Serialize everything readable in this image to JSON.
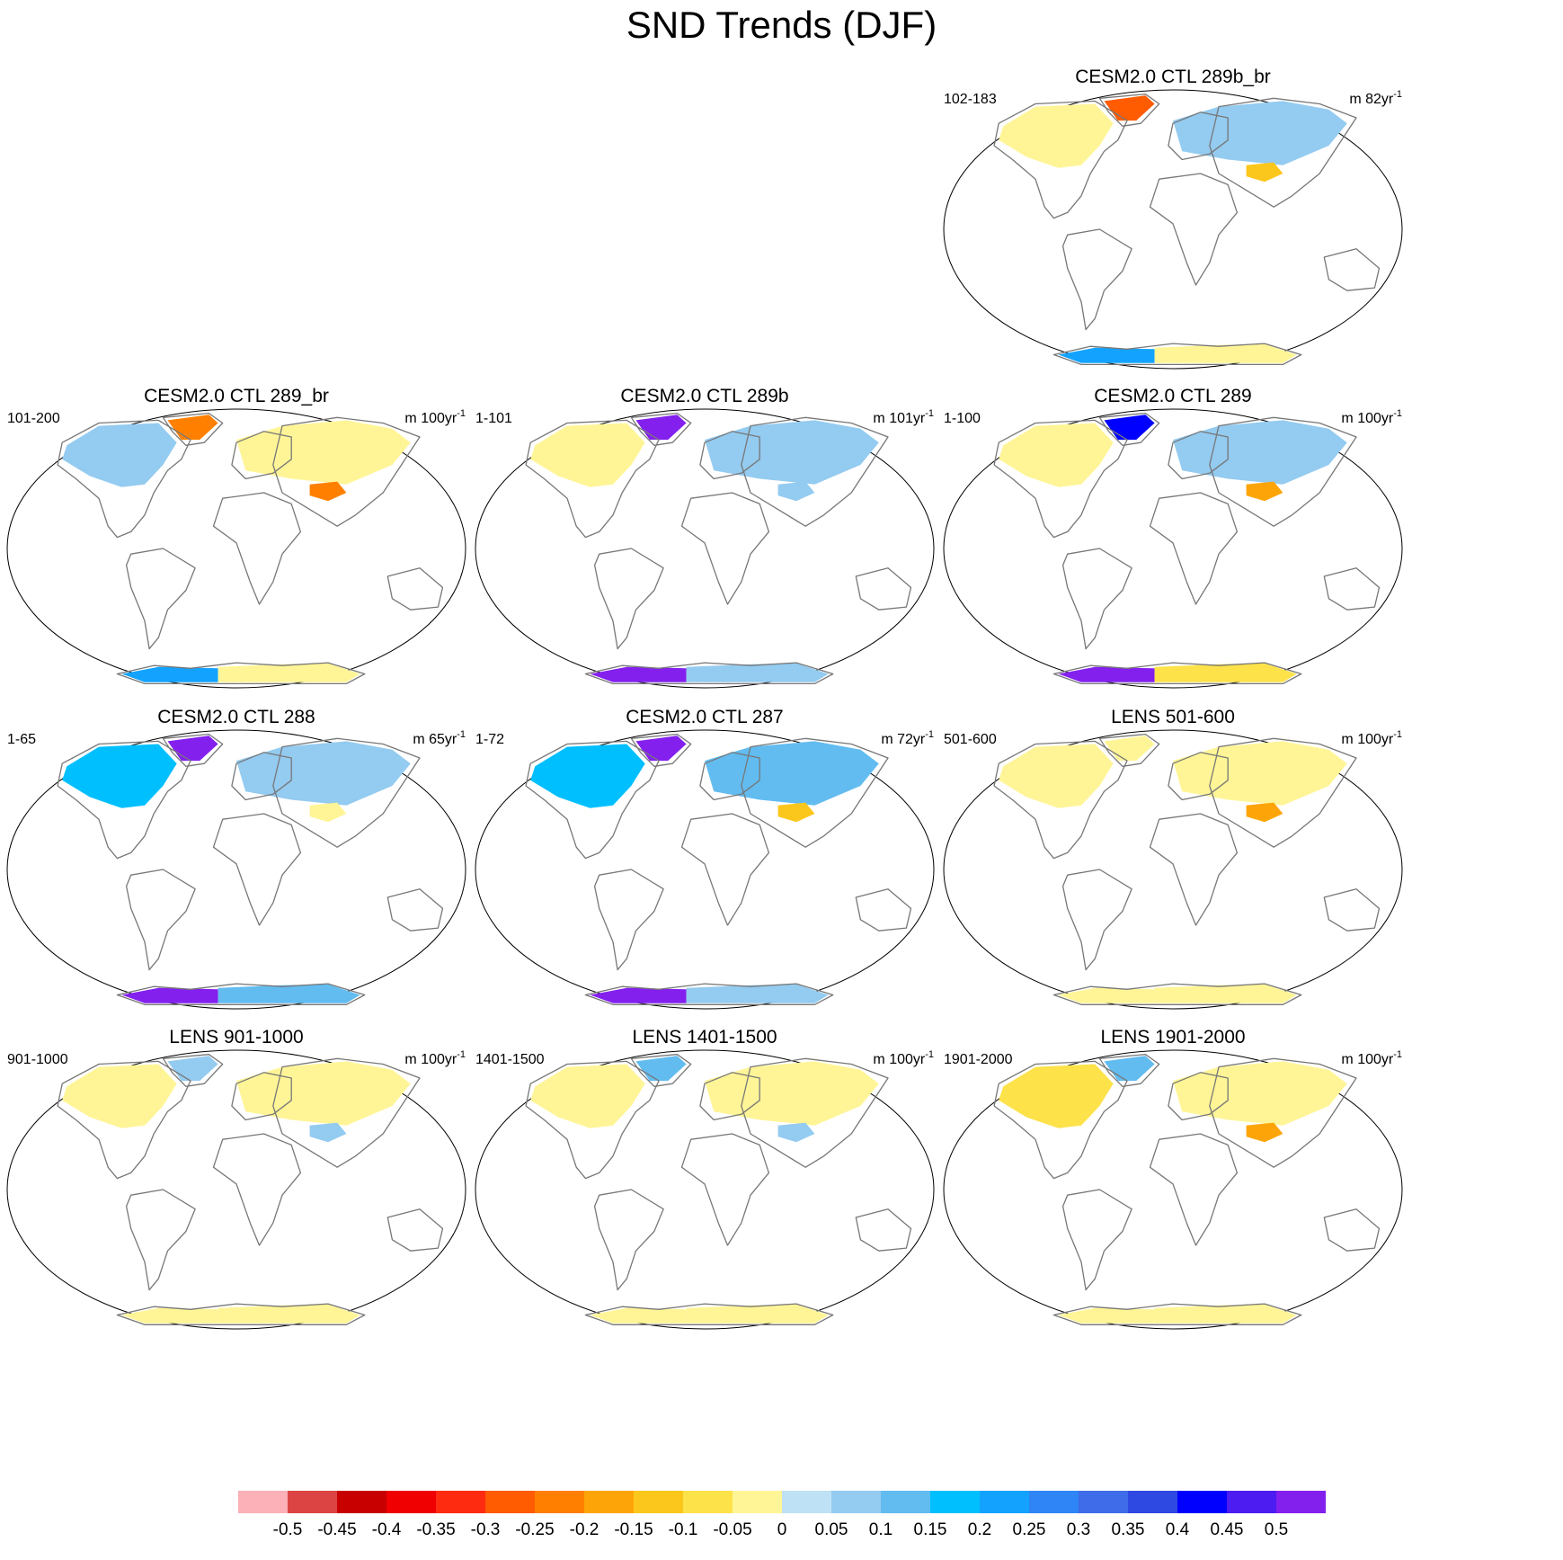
{
  "page_title": "SND Trends (DJF)",
  "colors": {
    "ocean": "#ffffff",
    "land_nodata": "#ffffff",
    "coast": "#777777",
    "frame": "#000000"
  },
  "chart_data": {
    "type": "heatmap",
    "projection": "Winkel Tripel (global map panels)",
    "title": "SND Trends (DJF)",
    "colorbar": {
      "colors": [
        "#fbb1b7",
        "#dc4444",
        "#c80000",
        "#f00000",
        "#ff2b10",
        "#ff5b00",
        "#ff8000",
        "#fda508",
        "#fcc71c",
        "#fde24a",
        "#fff597",
        "#bfe1f5",
        "#94cbf0",
        "#62bcf0",
        "#00bfff",
        "#13a3ff",
        "#2f85f6",
        "#3f6ce8",
        "#2e48e2",
        "#0000ff",
        "#4c1cf1",
        "#8420ee"
      ],
      "tick_labels": [
        "-0.5",
        "-0.45",
        "-0.4",
        "-0.35",
        "-0.3",
        "-0.25",
        "-0.2",
        "-0.15",
        "-0.1",
        "-0.05",
        "0",
        "0.05",
        "0.1",
        "0.15",
        "0.2",
        "0.25",
        "0.3",
        "0.35",
        "0.4",
        "0.45",
        "0.5"
      ]
    },
    "panels": [
      {
        "title": "CESM2.0 CTL 289b_br",
        "years": "102-183",
        "units_prefix": "m",
        "units_value": "82yr",
        "units_exp": "-1",
        "trends": {
          "greenland": -0.3,
          "north_america": -0.05,
          "eurasia": 0.05,
          "tibet": -0.15,
          "antarctica_west": 0.2,
          "antarctica_east": -0.05
        }
      },
      {
        "title": "CESM2.0 CTL 289_br",
        "years": "101-200",
        "units_prefix": "m",
        "units_value": "100yr",
        "units_exp": "-1",
        "trends": {
          "greenland": -0.25,
          "north_america": 0.05,
          "eurasia": -0.05,
          "tibet": -0.25,
          "antarctica_west": 0.2,
          "antarctica_east": -0.05
        }
      },
      {
        "title": "CESM2.0 CTL 289b",
        "years": "1-101",
        "units_prefix": "m",
        "units_value": "101yr",
        "units_exp": "-1",
        "trends": {
          "greenland": 0.5,
          "north_america": -0.05,
          "eurasia": 0.05,
          "tibet": 0.05,
          "antarctica_west": 0.5,
          "antarctica_east": 0.05
        }
      },
      {
        "title": "CESM2.0 CTL 289",
        "years": "1-100",
        "units_prefix": "m",
        "units_value": "100yr",
        "units_exp": "-1",
        "trends": {
          "greenland": 0.4,
          "north_america": -0.05,
          "eurasia": 0.05,
          "tibet": -0.2,
          "antarctica_west": 0.5,
          "antarctica_east": -0.1
        }
      },
      {
        "title": "CESM2.0 CTL 288",
        "years": "1-65",
        "units_prefix": "m",
        "units_value": "65yr",
        "units_exp": "-1",
        "trends": {
          "greenland": 0.5,
          "north_america": 0.15,
          "eurasia": 0.05,
          "tibet": -0.05,
          "antarctica_west": 0.5,
          "antarctica_east": 0.1
        }
      },
      {
        "title": "CESM2.0 CTL 287",
        "years": "1-72",
        "units_prefix": "m",
        "units_value": "72yr",
        "units_exp": "-1",
        "trends": {
          "greenland": 0.5,
          "north_america": 0.15,
          "eurasia": 0.1,
          "tibet": -0.15,
          "antarctica_west": 0.5,
          "antarctica_east": 0.05
        }
      },
      {
        "title": "LENS 501-600",
        "years": "501-600",
        "units_prefix": "m",
        "units_value": "100yr",
        "units_exp": "-1",
        "trends": {
          "greenland": -0.05,
          "north_america": -0.05,
          "eurasia": -0.05,
          "tibet": -0.2,
          "antarctica_west": -0.05,
          "antarctica_east": -0.05
        }
      },
      {
        "title": "LENS 901-1000",
        "years": "901-1000",
        "units_prefix": "m",
        "units_value": "100yr",
        "units_exp": "-1",
        "trends": {
          "greenland": 0.05,
          "north_america": -0.05,
          "eurasia": -0.05,
          "tibet": 0.05,
          "antarctica_west": -0.05,
          "antarctica_east": -0.05
        }
      },
      {
        "title": "LENS 1401-1500",
        "years": "1401-1500",
        "units_prefix": "m",
        "units_value": "100yr",
        "units_exp": "-1",
        "trends": {
          "greenland": 0.1,
          "north_america": -0.05,
          "eurasia": -0.05,
          "tibet": 0.05,
          "antarctica_west": -0.05,
          "antarctica_east": -0.05
        }
      },
      {
        "title": "LENS 1901-2000",
        "years": "1901-2000",
        "units_prefix": "m",
        "units_value": "100yr",
        "units_exp": "-1",
        "trends": {
          "greenland": 0.1,
          "north_america": -0.1,
          "eurasia": -0.05,
          "tibet": -0.2,
          "antarctica_west": -0.05,
          "antarctica_east": -0.05
        }
      }
    ]
  }
}
